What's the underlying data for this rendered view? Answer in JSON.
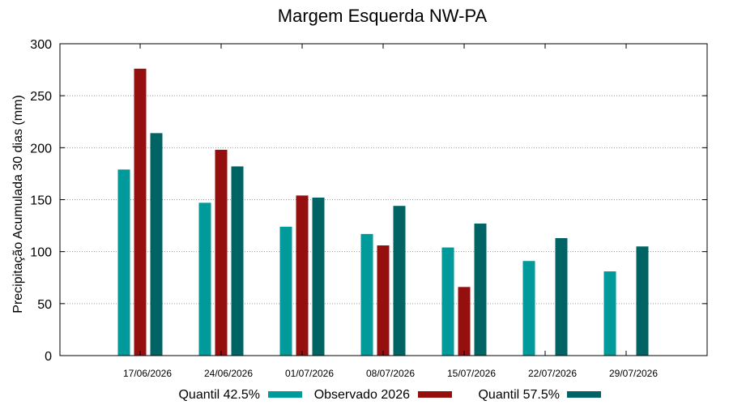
{
  "chart_data": {
    "type": "bar",
    "title": "Margem Esquerda NW-PA",
    "xlabel": "",
    "ylabel": "Precipitação Acumulada 30 dias (mm)",
    "ylim": [
      0,
      300
    ],
    "yticks": [
      0,
      50,
      100,
      150,
      200,
      250,
      300
    ],
    "grid": true,
    "legend_position": "bottom",
    "categories": [
      "17/06/2026",
      "24/06/2026",
      "01/07/2026",
      "08/07/2026",
      "15/07/2026",
      "22/07/2026",
      "29/07/2026"
    ],
    "series": [
      {
        "name": "Quantil 42.5%",
        "color": "#009a9a",
        "values": [
          179,
          147,
          124,
          117,
          104,
          91,
          81
        ]
      },
      {
        "name": "Observado 2026",
        "color": "#960f0f",
        "values": [
          276,
          198,
          154,
          106,
          66,
          null,
          null
        ]
      },
      {
        "name": "Quantil 57.5%",
        "color": "#006464",
        "values": [
          214,
          182,
          152,
          144,
          127,
          113,
          105
        ]
      }
    ]
  }
}
